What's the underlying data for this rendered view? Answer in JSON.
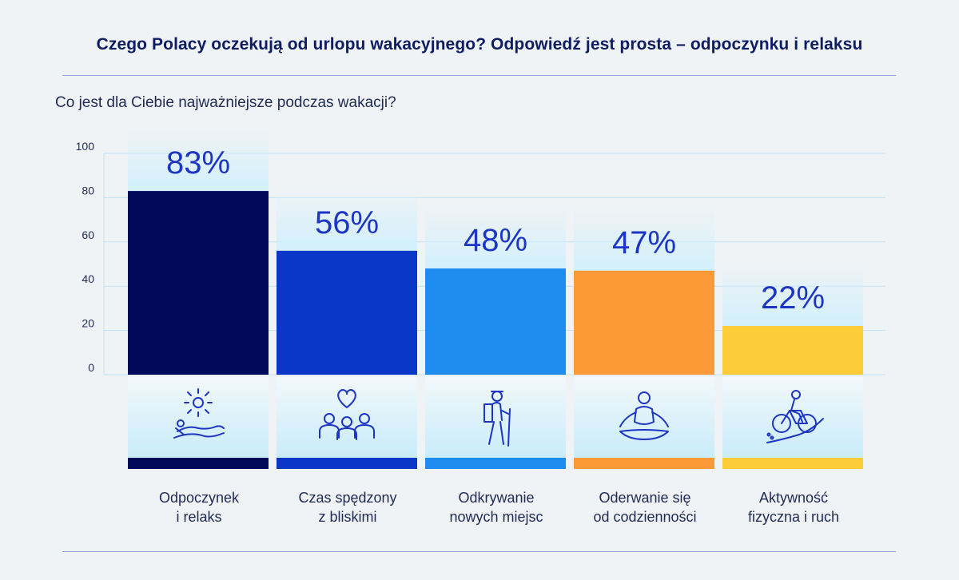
{
  "header": {
    "title": "Czego Polacy oczekują od urlopu wakacyjnego? Odpowiedź jest prosta – odpoczynku i relaksu",
    "subtitle": "Co jest dla Ciebie najważniejsze podczas wakacji?"
  },
  "chart_data": {
    "type": "bar",
    "title": "Czego Polacy oczekują od urlopu wakacyjnego? Odpowiedź jest prosta – odpoczynku i relaksu",
    "subtitle": "Co jest dla Ciebie najważniejsze podczas wakacji?",
    "categories": [
      [
        "Odpoczynek",
        "i relaks"
      ],
      [
        "Czas spędzony",
        "z bliskimi"
      ],
      [
        "Odkrywanie",
        "nowych miejsc"
      ],
      [
        "Oderwanie się",
        "od codzienności"
      ],
      [
        "Aktywność",
        "fizyczna i ruch"
      ]
    ],
    "values": [
      83,
      56,
      48,
      47,
      22
    ],
    "value_labels": [
      "83%",
      "56%",
      "48%",
      "47%",
      "22%"
    ],
    "colors": [
      "#02095a",
      "#0b37c9",
      "#1e8cf1",
      "#fb9a37",
      "#fdcc39"
    ],
    "icons": [
      "sunbathing-icon",
      "family-heart-icon",
      "hiker-icon",
      "meditation-icon",
      "cyclist-icon"
    ],
    "ylim": [
      0,
      100
    ],
    "yticks": [
      0,
      20,
      40,
      60,
      80,
      100
    ],
    "grid": true,
    "value_label_color": "#1d35c4"
  }
}
